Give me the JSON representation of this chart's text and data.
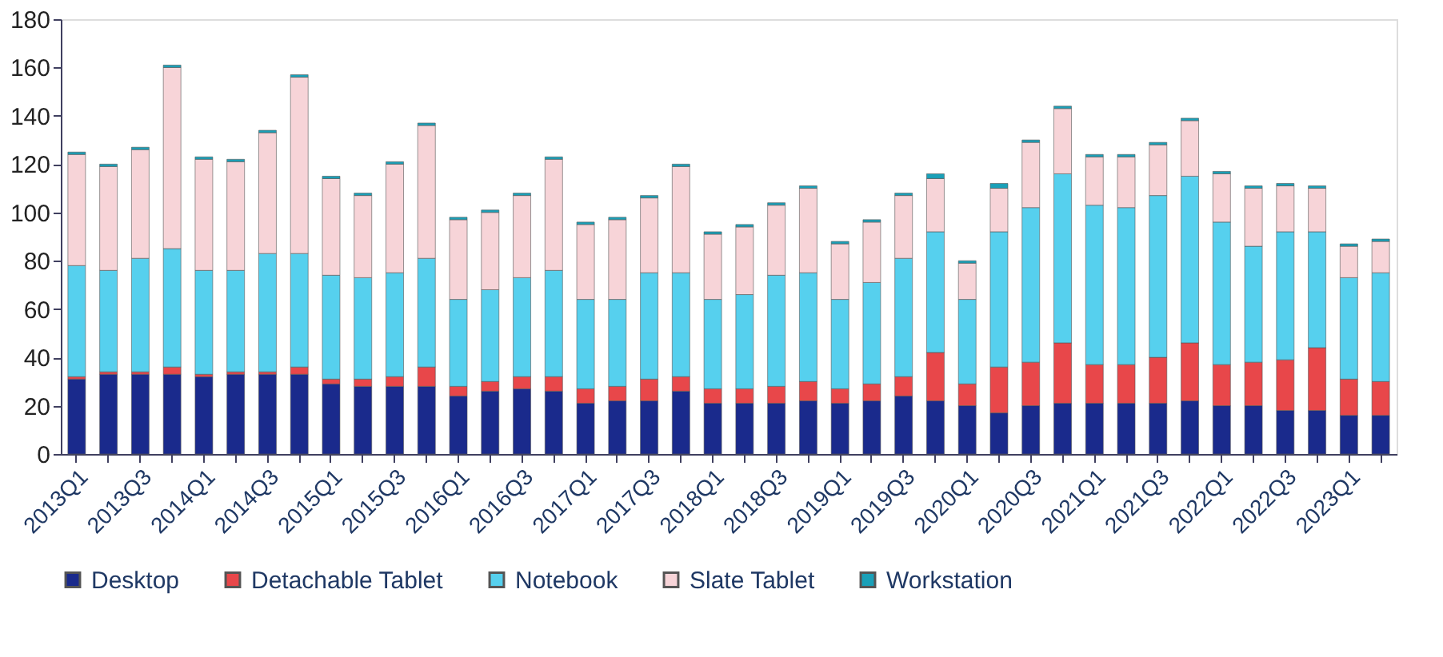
{
  "chart_data": {
    "type": "bar",
    "stacked": true,
    "categories": [
      "2013Q1",
      null,
      "2013Q3",
      null,
      "2014Q1",
      null,
      "2014Q3",
      null,
      "2015Q1",
      null,
      "2015Q3",
      null,
      "2016Q1",
      null,
      "2016Q3",
      null,
      "2017Q1",
      null,
      "2017Q3",
      null,
      "2018Q1",
      null,
      "2018Q3",
      null,
      "2019Q1",
      null,
      "2019Q3",
      null,
      "2020Q1",
      null,
      "2020Q3",
      null,
      "2021Q1",
      null,
      "2021Q3",
      null,
      "2022Q1",
      null,
      "2022Q3",
      null,
      "2023Q1",
      null
    ],
    "series": [
      {
        "name": "Desktop",
        "color": "#1a2a8c",
        "values": [
          31,
          33,
          33,
          33,
          32,
          33,
          33,
          33,
          29,
          28,
          28,
          28,
          24,
          26,
          27,
          26,
          21,
          22,
          22,
          26,
          21,
          21,
          21,
          22,
          21,
          22,
          24,
          22,
          20,
          17,
          20,
          21,
          21,
          21,
          21,
          22,
          20,
          20,
          18,
          18,
          16,
          16
        ]
      },
      {
        "name": "Detachable Tablet",
        "color": "#e8474a",
        "values": [
          1,
          1,
          1,
          3,
          1,
          1,
          1,
          3,
          2,
          3,
          4,
          8,
          4,
          4,
          5,
          6,
          6,
          6,
          9,
          6,
          6,
          6,
          7,
          8,
          6,
          7,
          8,
          20,
          9,
          19,
          18,
          25,
          16,
          16,
          19,
          24,
          17,
          18,
          21,
          26,
          15,
          14
        ]
      },
      {
        "name": "Notebook",
        "color": "#56d0ee",
        "values": [
          46,
          42,
          47,
          49,
          43,
          42,
          49,
          47,
          43,
          42,
          43,
          45,
          36,
          38,
          41,
          44,
          37,
          36,
          44,
          43,
          37,
          39,
          46,
          45,
          37,
          42,
          49,
          50,
          35,
          56,
          64,
          70,
          66,
          65,
          67,
          69,
          59,
          48,
          53,
          48,
          42,
          45
        ]
      },
      {
        "name": "Slate Tablet",
        "color": "#f7d4d8",
        "values": [
          46,
          43,
          45,
          75,
          46,
          45,
          50,
          73,
          40,
          34,
          45,
          55,
          33,
          32,
          34,
          46,
          31,
          33,
          31,
          44,
          27,
          28,
          29,
          35,
          23,
          25,
          26,
          22,
          15,
          18,
          27,
          27,
          20,
          21,
          21,
          23,
          20,
          24,
          19,
          18,
          13,
          13
        ]
      },
      {
        "name": "Workstation",
        "color": "#1aa0b8",
        "values": [
          1,
          1,
          1,
          1,
          1,
          1,
          1,
          1,
          1,
          1,
          1,
          1,
          1,
          1,
          1,
          1,
          1,
          1,
          1,
          1,
          1,
          1,
          1,
          1,
          1,
          1,
          1,
          2,
          1,
          2,
          1,
          1,
          1,
          1,
          1,
          1,
          1,
          1,
          1,
          1,
          1,
          1
        ]
      }
    ],
    "ylim": [
      0,
      180
    ],
    "yticks": [
      0,
      20,
      40,
      60,
      80,
      100,
      120,
      140,
      160,
      180
    ],
    "grid": false,
    "legend": "bottom"
  }
}
